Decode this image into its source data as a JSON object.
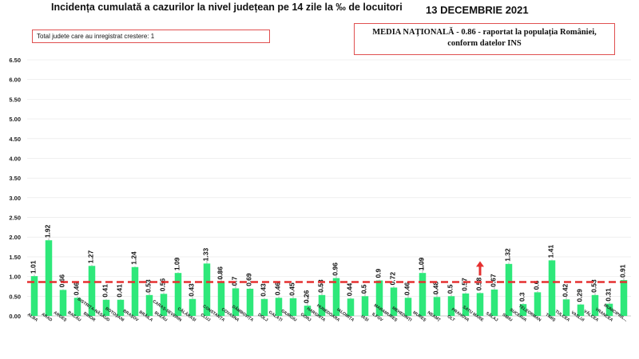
{
  "header": {
    "title": "Incidența cumulată a cazurilor la nivel județean pe 14 zile la ‰ de locuitori",
    "date": "13 DECEMBRIE 2021"
  },
  "info_left": "Total judete care au inregistrat crestere: 1",
  "info_right": {
    "line1": "MEDIA NAȚIONALĂ  - 0.86 -  raportat la populația României,",
    "line2": "conform datelor INS"
  },
  "colors": {
    "bar": "#2ee87a",
    "average_line": "#e53030",
    "arrow": "#e53030",
    "gridline": "#e6e6e6",
    "error_bar": "#999999"
  },
  "chart_data": {
    "type": "bar",
    "categories": [
      "ALBA",
      "ARAD",
      "ARGEȘ",
      "BACĂU",
      "BIHOR",
      "BISTRIȚA-NĂSĂUD",
      "BOTOȘANI",
      "BRAȘOV",
      "BRĂILA",
      "BUZĂU",
      "CARAȘ-SEVERIN",
      "CĂLĂRAȘI",
      "CLUJ",
      "CONSTANȚA",
      "COVASNA",
      "DÂMBOVIȚA",
      "DOLJ",
      "GALAȚI",
      "GIURGIU",
      "GORJ",
      "HARGHITA",
      "HUNEDOARA",
      "IALOMIȚA",
      "IAȘI",
      "ILFOV",
      "MARAMUREȘ",
      "MEHEDINȚI",
      "MUREȘ",
      "NEAMȚ",
      "OLT",
      "PRAHOVA",
      "SATU MARE",
      "SĂLAJ",
      "SIBIU",
      "SUCEAVA",
      "TELEORMAN",
      "TIMIȘ",
      "TULCEA",
      "VASLUI",
      "VÂLCEA",
      "VRANCEA",
      "MUNICIPIUL..."
    ],
    "values": [
      1.01,
      1.92,
      0.66,
      0.46,
      1.27,
      0.41,
      0.41,
      1.24,
      0.53,
      0.56,
      1.09,
      0.43,
      1.33,
      0.86,
      0.7,
      0.69,
      0.43,
      0.46,
      0.45,
      0.26,
      0.53,
      0.96,
      0.44,
      0.5,
      0.9,
      0.72,
      0.46,
      1.09,
      0.48,
      0.5,
      0.57,
      0.58,
      0.67,
      1.32,
      0.3,
      0.6,
      1.41,
      0.42,
      0.29,
      0.53,
      0.31,
      0.91
    ],
    "value_labels": [
      "1.01",
      "1.92",
      "0.66",
      "0.46",
      "1.27",
      "0.41",
      "0.41",
      "1.24",
      "0.53",
      "0.56",
      "1.09",
      "0.43",
      "1.33",
      "0.86",
      "0.7",
      "0.69",
      "0.43",
      "0.46",
      "0.45",
      "0.26",
      "0.53",
      "0.96",
      "0.44",
      "0.5",
      "0.9",
      "0.72",
      "0.46",
      "1.09",
      "0.48",
      "0.5",
      "0.57",
      "0.58",
      "0.67",
      "1.32",
      "0.3",
      "0.6",
      "1.41",
      "0.42",
      "0.29",
      "0.53",
      "0.31",
      "0.91"
    ],
    "error_tops": [
      1.05,
      1.97,
      0.68,
      0.5,
      1.3,
      0.43,
      0.43,
      1.26,
      0.6,
      0.6,
      1.11,
      0.49,
      1.42,
      1.15,
      0.8,
      0.72,
      0.46,
      0.49,
      0.5,
      0.55,
      0.8,
      1.02,
      0.47,
      0.75,
      0.92,
      0.76,
      0.55,
      1.45,
      0.8,
      0.55,
      0.6,
      0.6,
      0.73,
      1.36,
      0.33,
      0.64,
      1.43,
      0.5,
      0.31,
      0.58,
      0.36,
      0.97
    ],
    "average": 0.86,
    "increase_category": "SATU MARE",
    "yticks": [
      "0.00",
      "0.50",
      "1.00",
      "1.50",
      "2.00",
      "2.50",
      "3.00",
      "3.50",
      "4.00",
      "4.50",
      "5.00",
      "5.50",
      "6.00",
      "6.50"
    ],
    "ylim": [
      0,
      6.5
    ],
    "grid": true,
    "legend": "none"
  }
}
